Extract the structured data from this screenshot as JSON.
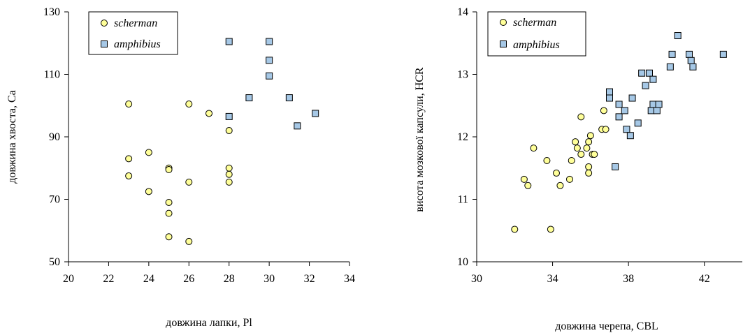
{
  "colors": {
    "scherman": "#ffff99",
    "amphibius": "#a6c8e6",
    "stroke": "#000000"
  },
  "chart_data": [
    {
      "type": "scatter",
      "xlabel": "довжина лапки, Pl",
      "ylabel": "довжина хвоста, Ca",
      "xlim": [
        20,
        34
      ],
      "ylim": [
        50,
        130
      ],
      "xticks": [
        20,
        22,
        24,
        26,
        28,
        30,
        32,
        34
      ],
      "yticks": [
        50,
        70,
        90,
        110,
        130
      ],
      "legend_position": "top-left",
      "series": [
        {
          "name": "scherman",
          "marker": "circle",
          "points": [
            [
              23,
              100.5
            ],
            [
              23,
              83
            ],
            [
              23,
              77.5
            ],
            [
              24,
              85
            ],
            [
              24,
              72.5
            ],
            [
              25,
              80
            ],
            [
              25,
              79.5
            ],
            [
              25,
              69
            ],
            [
              25,
              65.5
            ],
            [
              25,
              58
            ],
            [
              26,
              100.5
            ],
            [
              26,
              75.5
            ],
            [
              26,
              56.5
            ],
            [
              27,
              97.5
            ],
            [
              28,
              92
            ],
            [
              28,
              80
            ],
            [
              28,
              78
            ],
            [
              28,
              75.5
            ]
          ]
        },
        {
          "name": "amphibius",
          "marker": "square",
          "points": [
            [
              28,
              120.5
            ],
            [
              28,
              96.5
            ],
            [
              29,
              102.5
            ],
            [
              30,
              120.5
            ],
            [
              30,
              114.5
            ],
            [
              30,
              109.5
            ],
            [
              31,
              102.5
            ],
            [
              31.4,
              93.5
            ],
            [
              32.3,
              97.5
            ]
          ]
        }
      ]
    },
    {
      "type": "scatter",
      "xlabel": "довжина черепа, CBL",
      "ylabel": "висота мозкової капсули, HCR",
      "xlim": [
        30,
        44
      ],
      "ylim": [
        10,
        14
      ],
      "xticks": [
        30,
        34,
        38,
        42
      ],
      "yticks": [
        10,
        11,
        12,
        13,
        14
      ],
      "legend_position": "top-left",
      "series": [
        {
          "name": "scherman",
          "marker": "circle",
          "points": [
            [
              32.0,
              10.52
            ],
            [
              32.5,
              11.32
            ],
            [
              32.7,
              11.22
            ],
            [
              33.0,
              11.82
            ],
            [
              33.7,
              11.62
            ],
            [
              33.9,
              10.52
            ],
            [
              34.2,
              11.42
            ],
            [
              34.4,
              11.22
            ],
            [
              34.9,
              11.32
            ],
            [
              35.0,
              11.62
            ],
            [
              35.2,
              11.92
            ],
            [
              35.3,
              11.82
            ],
            [
              35.5,
              11.72
            ],
            [
              35.5,
              12.32
            ],
            [
              35.8,
              11.82
            ],
            [
              35.9,
              11.92
            ],
            [
              35.9,
              11.52
            ],
            [
              35.9,
              11.42
            ],
            [
              36.0,
              12.02
            ],
            [
              36.1,
              11.72
            ],
            [
              36.2,
              11.72
            ],
            [
              36.6,
              12.12
            ],
            [
              36.7,
              12.42
            ],
            [
              36.8,
              12.12
            ]
          ]
        },
        {
          "name": "amphibius",
          "marker": "square",
          "points": [
            [
              37.0,
              12.72
            ],
            [
              37.0,
              12.62
            ],
            [
              37.3,
              11.52
            ],
            [
              37.5,
              12.52
            ],
            [
              37.5,
              12.32
            ],
            [
              37.8,
              12.42
            ],
            [
              37.9,
              12.12
            ],
            [
              38.1,
              12.02
            ],
            [
              38.2,
              12.62
            ],
            [
              38.5,
              12.22
            ],
            [
              38.7,
              13.02
            ],
            [
              38.9,
              12.82
            ],
            [
              39.1,
              13.02
            ],
            [
              39.2,
              12.42
            ],
            [
              39.3,
              12.92
            ],
            [
              39.3,
              12.52
            ],
            [
              39.5,
              12.42
            ],
            [
              39.6,
              12.52
            ],
            [
              40.2,
              13.12
            ],
            [
              40.3,
              13.32
            ],
            [
              40.6,
              13.62
            ],
            [
              41.2,
              13.32
            ],
            [
              41.3,
              13.22
            ],
            [
              41.4,
              13.12
            ],
            [
              43.0,
              13.32
            ]
          ]
        }
      ]
    }
  ]
}
